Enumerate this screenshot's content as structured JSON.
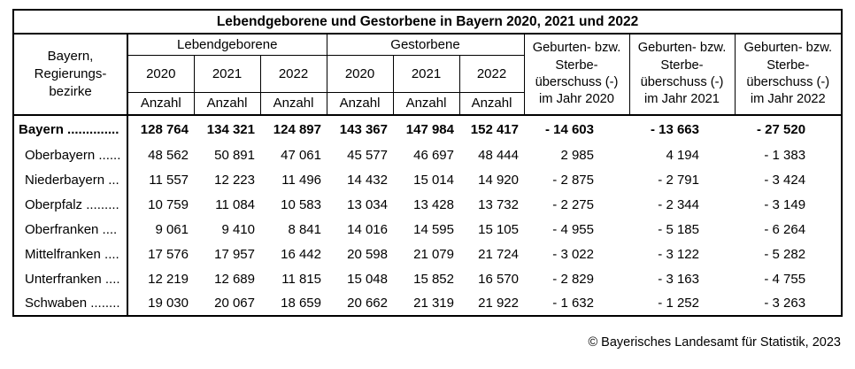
{
  "page": {
    "title": "Lebendgeborene und Gestorbene in Bayern 2020, 2021 und 2022",
    "footer": "© Bayerisches Landesamt für Statistik, 2023"
  },
  "table": {
    "stub_header": "Bayern,\nRegierungs-\nbezirke",
    "groups": [
      {
        "label": "Lebendgeborene"
      },
      {
        "label": "Gestorbene"
      }
    ],
    "years": [
      "2020",
      "2021",
      "2022",
      "2020",
      "2021",
      "2022"
    ],
    "unit": "Anzahl",
    "balance_headers": [
      "Geburten- bzw.\nSterbe-\nüberschuss (-)\nim Jahr 2020",
      "Geburten- bzw.\nSterbe-\nüberschuss (-)\nim Jahr 2021",
      "Geburten- bzw.\nSterbe-\nüberschuss (-)\nim Jahr 2022"
    ],
    "rows": [
      {
        "label": "Bayern ..............",
        "bold": true,
        "indent": false,
        "values": [
          "128 764",
          "134 321",
          "124 897",
          "143 367",
          "147 984",
          "152 417",
          "- 14 603",
          "- 13 663",
          "- 27 520"
        ]
      },
      {
        "label": "Oberbayern ......",
        "bold": false,
        "indent": true,
        "values": [
          "48 562",
          "50 891",
          "47 061",
          "45 577",
          "46 697",
          "48 444",
          "2 985",
          "4 194",
          "- 1 383"
        ]
      },
      {
        "label": "Niederbayern ...",
        "bold": false,
        "indent": true,
        "values": [
          "11 557",
          "12 223",
          "11 496",
          "14 432",
          "15 014",
          "14 920",
          "- 2 875",
          "- 2 791",
          "- 3 424"
        ]
      },
      {
        "label": "Oberpfalz .........",
        "bold": false,
        "indent": true,
        "values": [
          "10 759",
          "11 084",
          "10 583",
          "13 034",
          "13 428",
          "13 732",
          "- 2 275",
          "- 2 344",
          "- 3 149"
        ]
      },
      {
        "label": "Oberfranken ....",
        "bold": false,
        "indent": true,
        "values": [
          "9 061",
          "9 410",
          "8 841",
          "14 016",
          "14 595",
          "15 105",
          "- 4 955",
          "- 5 185",
          "- 6 264"
        ]
      },
      {
        "label": "Mittelfranken ....",
        "bold": false,
        "indent": true,
        "values": [
          "17 576",
          "17 957",
          "16 442",
          "20 598",
          "21 079",
          "21 724",
          "- 3 022",
          "- 3 122",
          "- 5 282"
        ]
      },
      {
        "label": "Unterfranken ....",
        "bold": false,
        "indent": true,
        "values": [
          "12 219",
          "12 689",
          "11 815",
          "15 048",
          "15 852",
          "16 570",
          "- 2 829",
          "- 3 163",
          "- 4 755"
        ]
      },
      {
        "label": "Schwaben ........",
        "bold": false,
        "indent": true,
        "values": [
          "19 030",
          "20 067",
          "18 659",
          "20 662",
          "21 319",
          "21 922",
          "- 1 632",
          "- 1 252",
          "- 3 263"
        ]
      }
    ]
  }
}
